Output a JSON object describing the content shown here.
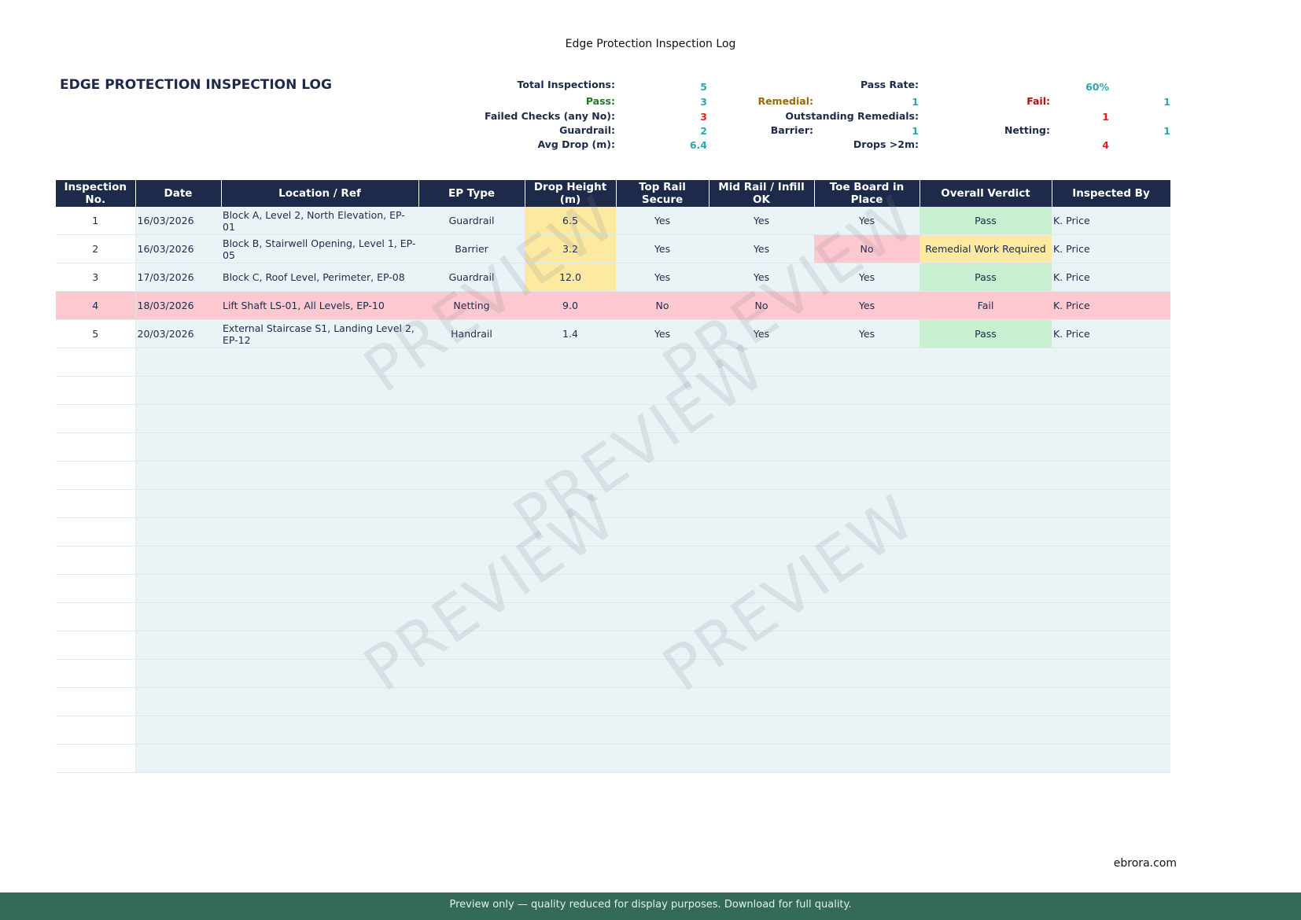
{
  "page_title": "Edge Protection Inspection Log",
  "heading": "EDGE PROTECTION INSPECTION LOG",
  "summary": {
    "total_label": "Total Inspections:",
    "total": "5",
    "pass_label": "Pass:",
    "pass": "3",
    "failed_checks_label": "Failed Checks (any No):",
    "failed_checks": "3",
    "guardrail_label": "Guardrail:",
    "guardrail": "2",
    "avg_drop_label": "Avg Drop (m):",
    "avg_drop": "6.4",
    "pass_rate_label": "Pass Rate:",
    "pass_rate": "60%",
    "remedial_label": "Remedial:",
    "remedial": "1",
    "fail_label": "Fail:",
    "fail": "1",
    "outstanding_label": "Outstanding Remedials:",
    "outstanding": "1",
    "barrier_label": "Barrier:",
    "barrier": "1",
    "netting_label": "Netting:",
    "netting": "1",
    "drops_label": "Drops >2m:",
    "drops": "4"
  },
  "table": {
    "headers": [
      "Inspection No.",
      "Date",
      "Location / Ref",
      "EP Type",
      "Drop Height (m)",
      "Top Rail Secure",
      "Mid Rail / Infill OK",
      "Toe Board in Place",
      "Overall Verdict",
      "Inspected By"
    ],
    "rows": [
      [
        "1",
        "16/03/2026",
        "Block A, Level 2, North Elevation, EP-01",
        "Guardrail",
        "6.5",
        "Yes",
        "Yes",
        "Yes",
        "Pass",
        "K. Price"
      ],
      [
        "2",
        "16/03/2026",
        "Block B, Stairwell Opening, Level 1, EP-05",
        "Barrier",
        "3.2",
        "Yes",
        "Yes",
        "No",
        "Remedial Work Required",
        "K. Price"
      ],
      [
        "3",
        "17/03/2026",
        "Block C, Roof Level, Perimeter, EP-08",
        "Guardrail",
        "12.0",
        "Yes",
        "Yes",
        "Yes",
        "Pass",
        "K. Price"
      ],
      [
        "4",
        "18/03/2026",
        "Lift Shaft LS-01, All Levels, EP-10",
        "Netting",
        "9.0",
        "No",
        "No",
        "Yes",
        "Fail",
        "K. Price"
      ],
      [
        "5",
        "20/03/2026",
        "External Staircase S1, Landing Level 2, EP-12",
        "Handrail",
        "1.4",
        "Yes",
        "Yes",
        "Yes",
        "Pass",
        "K. Price"
      ]
    ]
  },
  "watermark": "PREVIEW",
  "site": "ebrora.com",
  "footer": "Preview only  —  quality reduced for display purposes.  Download for full quality.",
  "colors": {
    "header": "#1e2a4a",
    "pass": "#c8efcf",
    "fail": "#fdc8cf",
    "warn": "#fde9a0",
    "footer": "#336b57"
  }
}
